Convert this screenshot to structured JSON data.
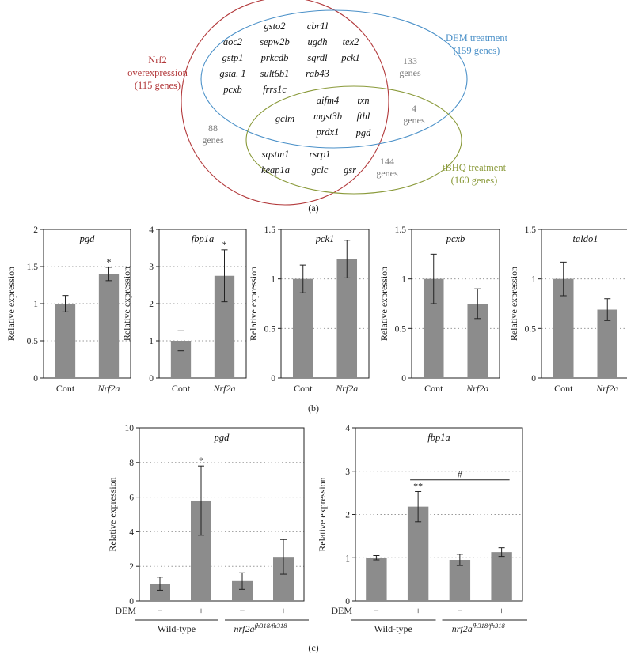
{
  "venn": {
    "sets": [
      {
        "name_line1": "Nrf2",
        "name_line2": "overexpression",
        "name_line3": "(115 genes)",
        "color": "#b2383a"
      },
      {
        "name_line1": "DEM treatment",
        "name_line2": "(159 genes)",
        "color": "#4a90c8"
      },
      {
        "name_line1": "tBHQ treatment",
        "name_line2": "(160 genes)",
        "color": "#8a9a3a"
      }
    ],
    "counts": {
      "dem_only": {
        "n": "133",
        "unit": "genes"
      },
      "dem_tbhq": {
        "n": "4",
        "unit": "genes"
      },
      "nrf2_only": {
        "n": "88",
        "unit": "genes"
      },
      "tbhq_only": {
        "n": "144",
        "unit": "genes"
      }
    },
    "genes_nrf2_dem": [
      "aoc2",
      "gstp1",
      "gsta. 1",
      "pcxb",
      "gsto2",
      "sepw2b",
      "prkcdb",
      "sult6b1",
      "frrs1c",
      "cbr1l",
      "ugdh",
      "sqrdl",
      "rab43",
      "tex2",
      "pck1"
    ],
    "genes_all3": [
      "gclm",
      "aifm4",
      "mgst3b",
      "prdx1",
      "txn",
      "fthl",
      "pgd"
    ],
    "genes_nrf2_tbhq": [
      "sqstm1",
      "rsrp1",
      "keap1a",
      "gclc",
      "gsr"
    ]
  },
  "panel_labels": {
    "a": "(a)",
    "b": "(b)",
    "c": "(c)"
  },
  "ylabel": "Relative expression",
  "chart_data": [
    {
      "type": "bar",
      "title": "pgd",
      "categories": [
        "Cont",
        "Nrf2a"
      ],
      "values": [
        1.0,
        1.4
      ],
      "errors": [
        0.11,
        0.09
      ],
      "significance": [
        "",
        "*"
      ],
      "ylim": [
        0,
        2
      ],
      "yticks": [
        "0",
        "0.5",
        "1",
        "1.5",
        "2"
      ],
      "ylabel": "Relative expression",
      "grid": "dotted horizontal"
    },
    {
      "type": "bar",
      "title": "fbp1a",
      "categories": [
        "Cont",
        "Nrf2a"
      ],
      "values": [
        1.0,
        2.75
      ],
      "errors": [
        0.27,
        0.7
      ],
      "significance": [
        "",
        "*"
      ],
      "ylim": [
        0,
        4
      ],
      "yticks": [
        "0",
        "1",
        "2",
        "3",
        "4"
      ],
      "ylabel": "Relative expression",
      "grid": "dotted horizontal"
    },
    {
      "type": "bar",
      "title": "pck1",
      "categories": [
        "Cont",
        "Nrf2a"
      ],
      "values": [
        1.0,
        1.2
      ],
      "errors": [
        0.14,
        0.19
      ],
      "significance": [
        "",
        ""
      ],
      "ylim": [
        0,
        1.5
      ],
      "yticks": [
        "0",
        "0.5",
        "1",
        "1.5"
      ],
      "ylabel": "Relative expression",
      "grid": "dotted horizontal"
    },
    {
      "type": "bar",
      "title": "pcxb",
      "categories": [
        "Cont",
        "Nrf2a"
      ],
      "values": [
        1.0,
        0.75
      ],
      "errors": [
        0.25,
        0.15
      ],
      "significance": [
        "",
        ""
      ],
      "ylim": [
        0,
        1.5
      ],
      "yticks": [
        "0",
        "0.5",
        "1",
        "1.5"
      ],
      "ylabel": "Relative expression",
      "grid": "dotted horizontal"
    },
    {
      "type": "bar",
      "title": "taldo1",
      "categories": [
        "Cont",
        "Nrf2a"
      ],
      "values": [
        1.0,
        0.69
      ],
      "errors": [
        0.17,
        0.11
      ],
      "significance": [
        "",
        ""
      ],
      "ylim": [
        0,
        1.5
      ],
      "yticks": [
        "0",
        "0.5",
        "1",
        "1.5"
      ],
      "ylabel": "Relative expression",
      "grid": "dotted horizontal"
    },
    {
      "type": "bar",
      "title": "pgd",
      "categories": [
        "−",
        "+",
        "−",
        "+"
      ],
      "dem_label": "DEM",
      "groups": [
        "Wild-type",
        "nrf2a"
      ],
      "group2_superscript": "fh318/fh318",
      "values": [
        1.0,
        5.8,
        1.15,
        2.55
      ],
      "errors": [
        0.38,
        2.0,
        0.48,
        1.0
      ],
      "significance": [
        "",
        "*",
        "",
        ""
      ],
      "ylim": [
        0,
        10
      ],
      "yticks": [
        "0",
        "2",
        "4",
        "6",
        "8",
        "10"
      ],
      "ylabel": "Relative expression",
      "grid": "dotted horizontal"
    },
    {
      "type": "bar",
      "title": "fbp1a",
      "categories": [
        "−",
        "+",
        "−",
        "+"
      ],
      "dem_label": "DEM",
      "groups": [
        "Wild-type",
        "nrf2a"
      ],
      "group2_superscript": "fh318/fh318",
      "values": [
        1.0,
        2.18,
        0.95,
        1.13
      ],
      "errors": [
        0.05,
        0.35,
        0.13,
        0.1
      ],
      "significance": [
        "",
        "**",
        "",
        ""
      ],
      "bracket": {
        "from": 1,
        "to": 3,
        "label": "#"
      },
      "ylim": [
        0,
        4
      ],
      "yticks": [
        "0",
        "1",
        "2",
        "3",
        "4"
      ],
      "ylabel": "Relative expression",
      "grid": "dotted horizontal"
    }
  ]
}
